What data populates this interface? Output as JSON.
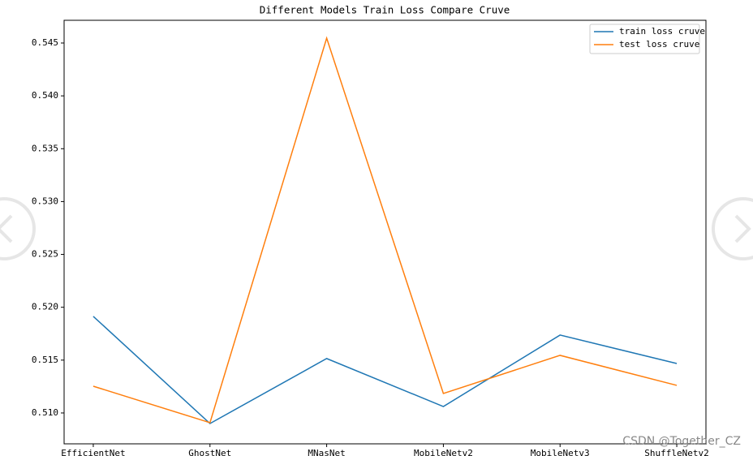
{
  "chart_data": {
    "type": "line",
    "title": "Different Models Train Loss Compare Cruve",
    "categories": [
      "EfficientNet",
      "GhostNet",
      "MNasNet",
      "MobileNetv2",
      "MobileNetv3",
      "ShuffleNetv2"
    ],
    "series": [
      {
        "name": "train loss cruve",
        "color": "#1f77b4",
        "values": [
          0.51914,
          0.509,
          0.51515,
          0.51061,
          0.51737,
          0.51468
        ]
      },
      {
        "name": "test loss cruve",
        "color": "#ff7f0e",
        "values": [
          0.51253,
          0.50908,
          0.54546,
          0.51184,
          0.51545,
          0.51261
        ]
      }
    ],
    "ylim": [
      0.50708,
      0.54715
    ],
    "yticks": [
      {
        "value": 0.51,
        "label": "0.510"
      },
      0.515,
      {
        "value": 0.52,
        "label": "0.520"
      },
      0.525,
      {
        "value": 0.53,
        "label": "0.530"
      },
      0.535,
      {
        "value": 0.54,
        "label": "0.540"
      },
      0.545
    ],
    "legend": "upper right",
    "grid": false
  },
  "watermark": "CSDN @Together_CZ"
}
